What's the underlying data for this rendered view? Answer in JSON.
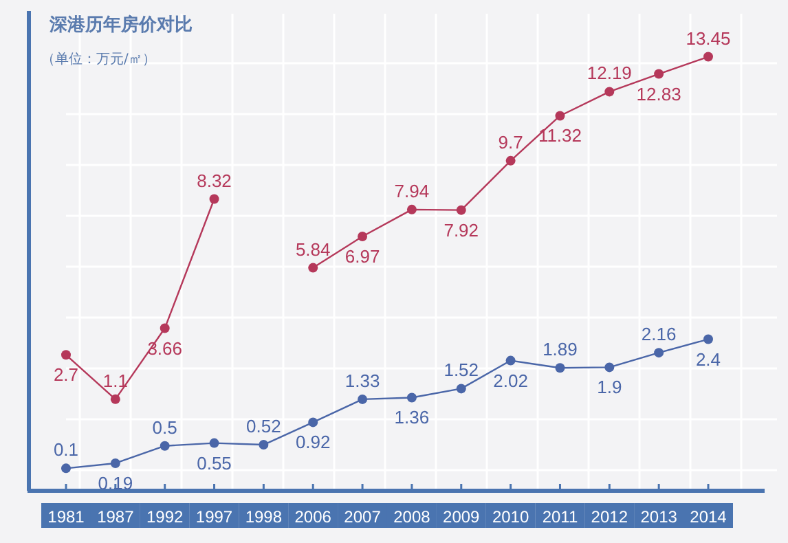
{
  "chart_data": {
    "type": "line",
    "title": "深港历年房价对比",
    "subtitle": "（单位：万元/㎡）",
    "categories": [
      "1981",
      "1987",
      "1992",
      "1997",
      "1998",
      "2006",
      "2007",
      "2008",
      "2009",
      "2010",
      "2011",
      "2012",
      "2013",
      "2014"
    ],
    "series": [
      {
        "color": "#b5385a",
        "values": [
          2.7,
          1.1,
          3.66,
          8.32,
          null,
          5.84,
          6.97,
          7.94,
          7.92,
          9.7,
          11.32,
          12.19,
          12.83,
          13.45
        ]
      },
      {
        "color": "#4a66a8",
        "axis": "y2",
        "values": [
          0.1,
          0.19,
          0.5,
          0.55,
          0.52,
          0.92,
          1.33,
          1.36,
          1.52,
          2.02,
          1.89,
          1.9,
          2.16,
          2.4
        ]
      }
    ],
    "ylim": [
      -2.2,
      15
    ],
    "y2lim": [
      -0.3,
      8.2
    ],
    "tick_labels": "x",
    "data_labels": true,
    "grid": true,
    "marker": "circle",
    "line_style": "solid"
  }
}
